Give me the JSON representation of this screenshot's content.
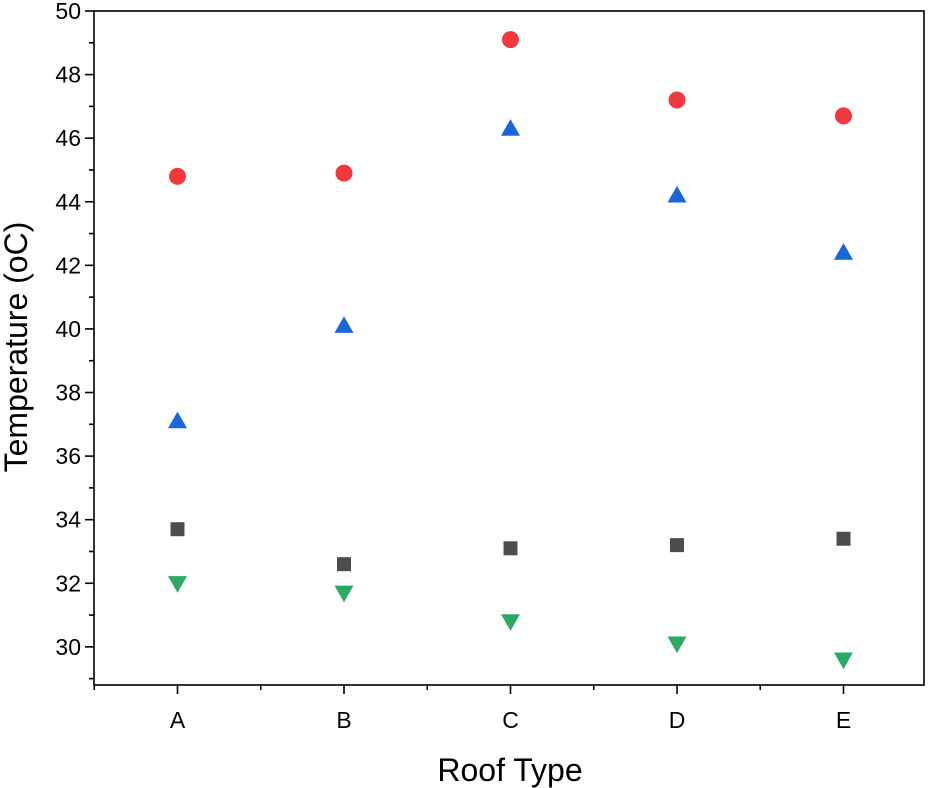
{
  "chart_data": {
    "type": "scatter",
    "title": "",
    "xlabel": "Roof Type",
    "ylabel": "Temperature (oC)",
    "categories": [
      "A",
      "B",
      "C",
      "D",
      "E"
    ],
    "ylim": [
      28.8,
      50
    ],
    "yticks": [
      "30",
      "32",
      "34",
      "36",
      "38",
      "40",
      "42",
      "44",
      "46",
      "48",
      "50"
    ],
    "grid": false,
    "legend": "none",
    "series": [
      {
        "marker": "circle",
        "color": "#f0393c",
        "values": [
          44.8,
          44.9,
          49.1,
          47.2,
          46.7
        ]
      },
      {
        "marker": "triangle-up",
        "color": "#1a66d9",
        "values": [
          37.1,
          40.1,
          46.3,
          44.2,
          42.4
        ]
      },
      {
        "marker": "square",
        "color": "#4d4d4d",
        "values": [
          33.7,
          32.6,
          33.1,
          33.2,
          33.4
        ]
      },
      {
        "marker": "triangle-down",
        "color": "#2aaa63",
        "values": [
          32.0,
          31.7,
          30.8,
          30.1,
          29.6
        ]
      }
    ]
  }
}
